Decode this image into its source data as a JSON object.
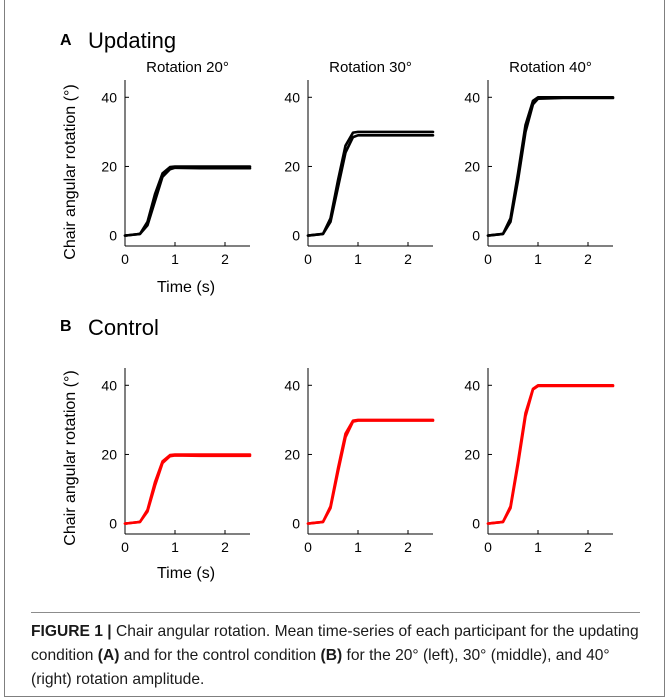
{
  "panels": [
    {
      "letter": "A",
      "title": "Updating",
      "ylabel": "Chair angular rotation (°)",
      "xlabel": "Time (s)",
      "color": "#000000",
      "show_subtitles": true
    },
    {
      "letter": "B",
      "title": "Control",
      "ylabel": "Chair angular rotation (°)",
      "xlabel": "Time (s)",
      "color": "#ff0000",
      "show_subtitles": false
    }
  ],
  "chart_data": [
    {
      "type": "line",
      "panel": "A",
      "title": "Rotation 20°",
      "xlim": [
        0,
        2.5
      ],
      "ylim": [
        -3,
        45
      ],
      "xticks": [
        "0",
        "1",
        "2"
      ],
      "yticks": [
        "0",
        "20",
        "40"
      ],
      "amplitude": 20,
      "series": [
        {
          "x": [
            0,
            0.3,
            0.45,
            0.6,
            0.75,
            0.9,
            1.0,
            1.5,
            2.0,
            2.5
          ],
          "y": [
            0,
            0.5,
            4,
            12,
            18,
            19.8,
            20,
            20,
            20,
            20
          ]
        },
        {
          "x": [
            0,
            0.3,
            0.45,
            0.6,
            0.75,
            0.9,
            1.0,
            1.5,
            2.0,
            2.5
          ],
          "y": [
            0,
            0.5,
            3,
            10,
            17,
            19.2,
            19.6,
            19.5,
            19.5,
            19.5
          ]
        }
      ]
    },
    {
      "type": "line",
      "panel": "A",
      "title": "Rotation 30°",
      "xlim": [
        0,
        2.5
      ],
      "ylim": [
        -3,
        45
      ],
      "xticks": [
        "0",
        "1",
        "2"
      ],
      "yticks": [
        "0",
        "20",
        "40"
      ],
      "amplitude": 30,
      "series": [
        {
          "x": [
            0,
            0.3,
            0.45,
            0.6,
            0.75,
            0.9,
            1.0,
            1.5,
            2.0,
            2.5
          ],
          "y": [
            0,
            0.5,
            5,
            16,
            26,
            29.8,
            30,
            30,
            30,
            30
          ]
        },
        {
          "x": [
            0,
            0.3,
            0.45,
            0.6,
            0.75,
            0.9,
            1.0,
            1.5,
            2.0,
            2.5
          ],
          "y": [
            0,
            0.5,
            4,
            14,
            24,
            28.5,
            29,
            29,
            29,
            29
          ]
        }
      ]
    },
    {
      "type": "line",
      "panel": "A",
      "title": "Rotation 40°",
      "xlim": [
        0,
        2.5
      ],
      "ylim": [
        -3,
        45
      ],
      "xticks": [
        "0",
        "1",
        "2"
      ],
      "yticks": [
        "0",
        "20",
        "40"
      ],
      "amplitude": 40,
      "series": [
        {
          "x": [
            0,
            0.3,
            0.45,
            0.6,
            0.75,
            0.9,
            1.0,
            1.5,
            2.0,
            2.5
          ],
          "y": [
            0,
            0.5,
            5,
            18,
            32,
            39,
            40,
            40,
            40,
            40
          ]
        },
        {
          "x": [
            0,
            0.3,
            0.45,
            0.6,
            0.75,
            0.9,
            1.0,
            1.5,
            2.0,
            2.5
          ],
          "y": [
            0,
            0.5,
            4,
            16,
            30,
            38,
            39.6,
            39.8,
            39.8,
            39.8
          ]
        }
      ]
    },
    {
      "type": "line",
      "panel": "B",
      "xlim": [
        0,
        2.5
      ],
      "ylim": [
        -3,
        45
      ],
      "xticks": [
        "0",
        "1",
        "2"
      ],
      "yticks": [
        "0",
        "20",
        "40"
      ],
      "amplitude": 20,
      "series": [
        {
          "x": [
            0,
            0.3,
            0.45,
            0.6,
            0.75,
            0.9,
            1.0,
            1.5,
            2.0,
            2.5
          ],
          "y": [
            0,
            0.5,
            4,
            12,
            18,
            19.8,
            20,
            20,
            20,
            20
          ]
        },
        {
          "x": [
            0,
            0.3,
            0.45,
            0.6,
            0.75,
            0.9,
            1.0,
            1.5,
            2.0,
            2.5
          ],
          "y": [
            0,
            0.5,
            3.5,
            11,
            17.5,
            19.5,
            19.7,
            19.6,
            19.6,
            19.6
          ]
        }
      ]
    },
    {
      "type": "line",
      "panel": "B",
      "xlim": [
        0,
        2.5
      ],
      "ylim": [
        -3,
        45
      ],
      "xticks": [
        "0",
        "1",
        "2"
      ],
      "yticks": [
        "0",
        "20",
        "40"
      ],
      "amplitude": 30,
      "series": [
        {
          "x": [
            0,
            0.3,
            0.45,
            0.6,
            0.75,
            0.9,
            1.0,
            1.5,
            2.0,
            2.5
          ],
          "y": [
            0,
            0.5,
            5,
            16,
            26,
            29.8,
            30,
            30,
            30,
            30
          ]
        },
        {
          "x": [
            0,
            0.3,
            0.45,
            0.6,
            0.75,
            0.9,
            1.0,
            1.5,
            2.0,
            2.5
          ],
          "y": [
            0,
            0.5,
            4.5,
            15,
            25,
            29.5,
            29.8,
            29.8,
            29.8,
            29.8
          ]
        }
      ]
    },
    {
      "type": "line",
      "panel": "B",
      "xlim": [
        0,
        2.5
      ],
      "ylim": [
        -3,
        45
      ],
      "xticks": [
        "0",
        "1",
        "2"
      ],
      "yticks": [
        "0",
        "20",
        "40"
      ],
      "amplitude": 40,
      "series": [
        {
          "x": [
            0,
            0.3,
            0.45,
            0.6,
            0.75,
            0.9,
            1.0,
            1.5,
            2.0,
            2.5
          ],
          "y": [
            0,
            0.5,
            5,
            18,
            32,
            39,
            40,
            40,
            40,
            40
          ]
        },
        {
          "x": [
            0,
            0.3,
            0.45,
            0.6,
            0.75,
            0.9,
            1.0,
            1.5,
            2.0,
            2.5
          ],
          "y": [
            0,
            0.5,
            4.5,
            17,
            31,
            38.8,
            39.8,
            39.8,
            39.8,
            39.8
          ]
        }
      ]
    }
  ],
  "caption": {
    "label": "FIGURE 1 |",
    "text1": " Chair angular rotation. Mean time-series of each participant for the updating condition ",
    "ref_a": "(A)",
    "text2": " and for the control condition ",
    "ref_b": "(B)",
    "text3": " for the 20° (left), 30° (middle), and 40° (right) rotation amplitude."
  }
}
